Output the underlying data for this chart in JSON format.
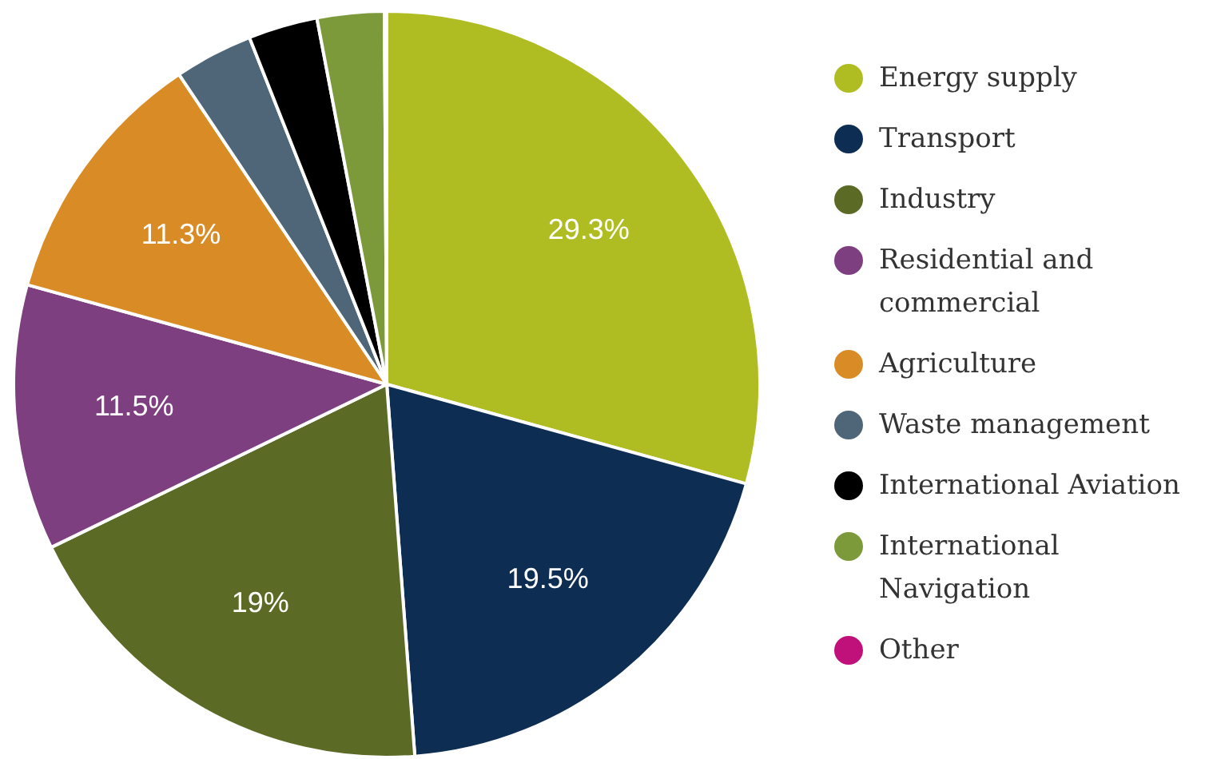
{
  "chart_data": {
    "type": "pie",
    "categories": [
      "Energy supply",
      "Transport",
      "Industry",
      "Residential and commercial",
      "Agriculture",
      "Waste management",
      "International Aviation",
      "International Navigation",
      "Other"
    ],
    "values": [
      29.3,
      19.5,
      19,
      11.5,
      11.3,
      3.4,
      3.0,
      2.9,
      0.1
    ],
    "colors": [
      "#b0bd22",
      "#0e2d52",
      "#5b6b26",
      "#7e3f80",
      "#d98c25",
      "#4f6578",
      "#000000",
      "#7d9a3a",
      "#c0107a"
    ],
    "value_labels": [
      "29.3%",
      "19.5%",
      "19%",
      "11.5%",
      "11.3%",
      null,
      null,
      null,
      null
    ],
    "legend": "right"
  }
}
